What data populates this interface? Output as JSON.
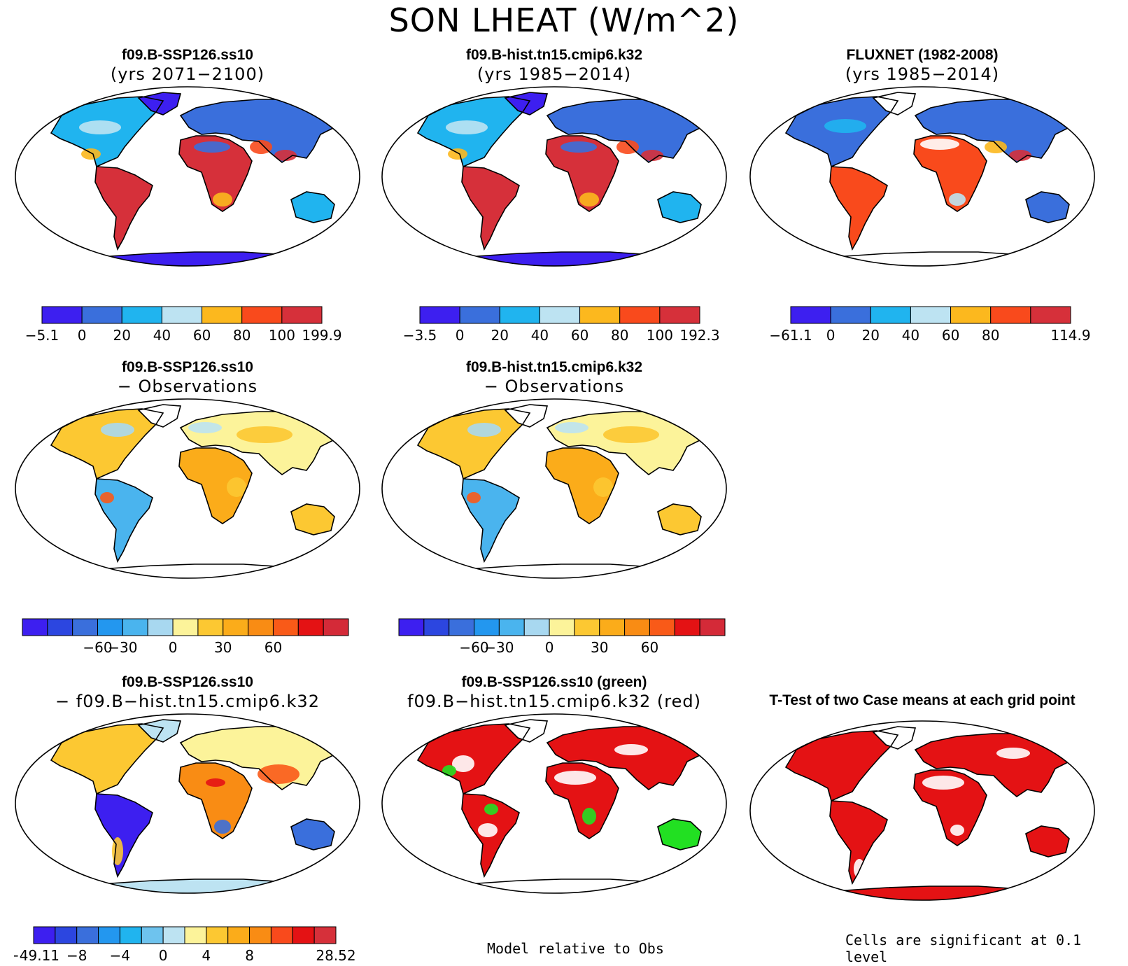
{
  "title": "SON LHEAT (W/m^2)",
  "panels": [
    {
      "id": "p1",
      "title": "f09.B-SSP126.ss10",
      "subtitle": "(yrs 2071−2100)",
      "type": "abs"
    },
    {
      "id": "p2",
      "title": "f09.B-hist.tn15.cmip6.k32",
      "subtitle": "(yrs 1985−2014)",
      "type": "abs"
    },
    {
      "id": "p3",
      "title": "FLUXNET (1982-2008)",
      "subtitle": "(yrs 1985−2014)",
      "type": "obs"
    },
    {
      "id": "p4",
      "title": "f09.B-SSP126.ss10",
      "subtitle": "− Observations",
      "type": "diff"
    },
    {
      "id": "p5",
      "title": "f09.B-hist.tn15.cmip6.k32",
      "subtitle": "− Observations",
      "type": "diff"
    },
    {
      "id": "p6",
      "title": "f09.B-SSP126.ss10",
      "subtitle": "− f09.B−hist.tn15.cmip6.k32",
      "type": "casediff"
    },
    {
      "id": "p7",
      "title": "f09.B-SSP126.ss10 (green)",
      "subtitle": "f09.B−hist.tn15.cmip6.k32 (red)",
      "type": "compare"
    },
    {
      "id": "p8",
      "title": "T-Test of two Case means at each grid point",
      "subtitle": "",
      "type": "ttest"
    }
  ],
  "colorbars": {
    "abs": {
      "colors": [
        "#3d1ff0",
        "#3a6fdc",
        "#20b4ef",
        "#bde3f2",
        "#fcb81e",
        "#f94a1c",
        "#d6303a"
      ],
      "labels1": [
        "−5.1",
        "0",
        "20",
        "40",
        "60",
        "80",
        "100",
        "199.9"
      ],
      "labels2": [
        "−3.5",
        "0",
        "20",
        "40",
        "60",
        "80",
        "100",
        "192.3"
      ],
      "labels3": [
        "−61.1",
        "0",
        "20",
        "40",
        "60",
        "80",
        "",
        "114.9"
      ]
    },
    "diff": {
      "colors": [
        "#3d1ff0",
        "#2c46e0",
        "#3a6fdc",
        "#2397ef",
        "#4ab4ee",
        "#a8d8f0",
        "#fcf39a",
        "#fcc832",
        "#fbac1a",
        "#f98c14",
        "#f95a18",
        "#e41214",
        "#d42a38"
      ],
      "labels": [
        "−60",
        "−30",
        "0",
        "30",
        "60"
      ]
    },
    "casediff": {
      "colors": [
        "#3d1ff0",
        "#2c46e0",
        "#3a6fdc",
        "#2397ef",
        "#20b4ef",
        "#6ec3ee",
        "#bde3f2",
        "#fcf39a",
        "#fcc832",
        "#fbac1a",
        "#f98c14",
        "#f94a1c",
        "#e41214",
        "#d6303a"
      ],
      "labels": [
        "−49.11",
        "−8",
        "−4",
        "0",
        "4",
        "8",
        "28.52"
      ]
    }
  },
  "notes": {
    "compare": "Model relative to Obs",
    "ttest": "Cells are significant at 0.1 level"
  }
}
